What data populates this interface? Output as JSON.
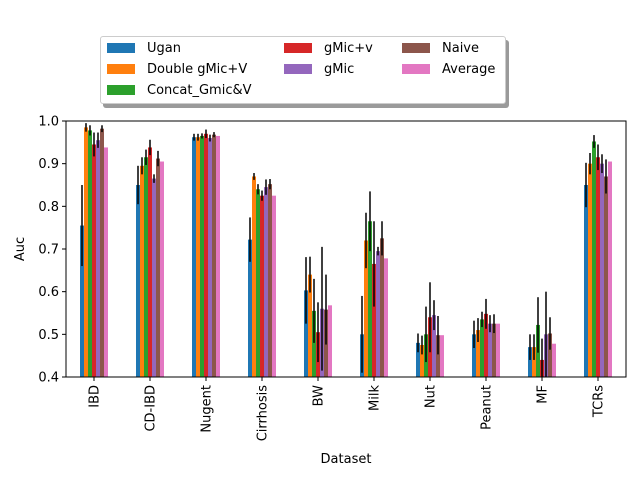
{
  "chart_data": {
    "type": "bar",
    "xlabel": "Dataset",
    "ylabel": "Auc",
    "ylim": [
      0.4,
      1.0
    ],
    "yticks": [
      "0.4",
      "0.5",
      "0.6",
      "0.7",
      "0.8",
      "0.9",
      "1.0"
    ],
    "grid": false,
    "legend_position": "top-center",
    "categories": [
      "IBD",
      "CD-IBD",
      "Nugent",
      "Cirrhosis",
      "BW",
      "Milk",
      "Nut",
      "Peanut",
      "MF",
      "TCRs"
    ],
    "series": [
      {
        "name": "Ugan",
        "color": "#1f77b4",
        "values": [
          0.755,
          0.85,
          0.962,
          0.722,
          0.603,
          0.5,
          0.48,
          0.5,
          0.47,
          0.85
        ],
        "errors": [
          0.095,
          0.045,
          0.008,
          0.052,
          0.078,
          0.09,
          0.022,
          0.032,
          0.03,
          0.052
        ]
      },
      {
        "name": "Double gMic+V",
        "color": "#ff7f0e",
        "values": [
          0.985,
          0.895,
          0.962,
          0.87,
          0.64,
          0.72,
          0.475,
          0.51,
          0.47,
          0.9
        ],
        "errors": [
          0.01,
          0.02,
          0.008,
          0.008,
          0.042,
          0.065,
          0.022,
          0.028,
          0.03,
          0.025
        ]
      },
      {
        "name": "Concat_Gmic&V",
        "color": "#2ca02c",
        "values": [
          0.978,
          0.915,
          0.965,
          0.84,
          0.555,
          0.765,
          0.5,
          0.535,
          0.522,
          0.952
        ],
        "errors": [
          0.012,
          0.018,
          0.006,
          0.012,
          0.075,
          0.07,
          0.065,
          0.018,
          0.065,
          0.015
        ]
      },
      {
        "name": "gMic+v",
        "color": "#d62728",
        "values": [
          0.945,
          0.938,
          0.97,
          0.825,
          0.505,
          0.665,
          0.54,
          0.548,
          0.44,
          0.915
        ],
        "errors": [
          0.028,
          0.018,
          0.01,
          0.012,
          0.07,
          0.1,
          0.082,
          0.035,
          0.05,
          0.03
        ]
      },
      {
        "name": "gMic",
        "color": "#9467bd",
        "values": [
          0.955,
          0.865,
          0.96,
          0.845,
          0.56,
          0.695,
          0.545,
          0.525,
          0.5,
          0.9
        ],
        "errors": [
          0.018,
          0.01,
          0.008,
          0.018,
          0.145,
          0.01,
          0.035,
          0.02,
          0.1,
          0.022
        ]
      },
      {
        "name": "Naive",
        "color": "#8c564b",
        "values": [
          0.982,
          0.912,
          0.968,
          0.852,
          0.558,
          0.725,
          0.498,
          0.525,
          0.502,
          0.87
        ],
        "errors": [
          0.008,
          0.018,
          0.006,
          0.012,
          0.082,
          0.04,
          0.045,
          0.022,
          0.038,
          0.04
        ]
      },
      {
        "name": "Average",
        "color": "#e377c2",
        "values": [
          0.938,
          0.905,
          0.965,
          0.825,
          0.568,
          0.678,
          0.498,
          0.525,
          0.478,
          0.905
        ],
        "errors": [
          0,
          0,
          0,
          0,
          0,
          0,
          0,
          0,
          0,
          0
        ]
      }
    ]
  }
}
